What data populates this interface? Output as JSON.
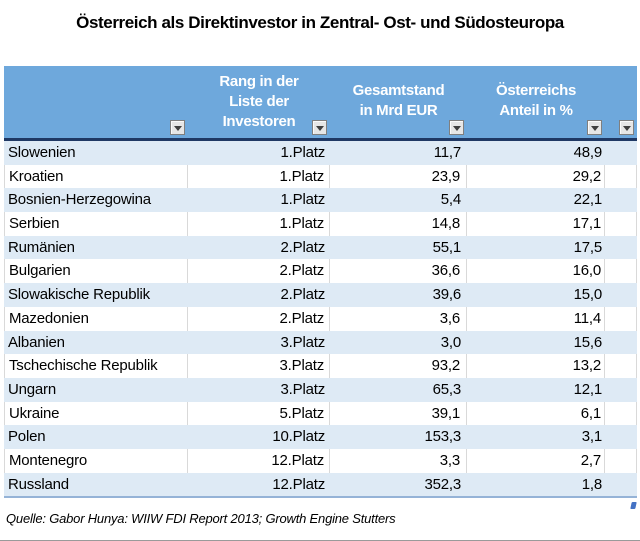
{
  "title": "Österreich als Direktinvestor in Zentral- Ost- und Südosteuropa",
  "source": "Quelle: Gabor Hunya: WIIW FDI Report 2013; Growth Engine Stutters",
  "colors": {
    "header_bg": "#6EA8DC",
    "header_text": "#FFFFFF",
    "header_bottom_border": "#1F3864",
    "band_blue": "#DEEAF5",
    "band_white": "#FFFFFF",
    "table_bottom_border": "#95B3D7",
    "filter_button_bg": "#E6E6E6"
  },
  "table": {
    "header": {
      "country_label": "",
      "rang_lines": [
        "Rang in der",
        "Liste der",
        "Investoren"
      ],
      "gesamtstand_lines": [
        "Gesamtstand",
        "in Mrd EUR"
      ],
      "anteil_lines": [
        "Österreichs",
        "Anteil in %"
      ],
      "extra_label": ""
    },
    "rows": [
      {
        "country": "Slowenien",
        "rang": "1.Platz",
        "gesamtstand": "11,7",
        "anteil": "48,9"
      },
      {
        "country": "Kroatien",
        "rang": "1.Platz",
        "gesamtstand": "23,9",
        "anteil": "29,2"
      },
      {
        "country": "Bosnien-Herzegowina",
        "rang": "1.Platz",
        "gesamtstand": "5,4",
        "anteil": "22,1"
      },
      {
        "country": "Serbien",
        "rang": "1.Platz",
        "gesamtstand": "14,8",
        "anteil": "17,1"
      },
      {
        "country": "Rumänien",
        "rang": "2.Platz",
        "gesamtstand": "55,1",
        "anteil": "17,5"
      },
      {
        "country": "Bulgarien",
        "rang": "2.Platz",
        "gesamtstand": "36,6",
        "anteil": "16,0"
      },
      {
        "country": "Slowakische Republik",
        "rang": "2.Platz",
        "gesamtstand": "39,6",
        "anteil": "15,0"
      },
      {
        "country": "Mazedonien",
        "rang": "2.Platz",
        "gesamtstand": "3,6",
        "anteil": "11,4"
      },
      {
        "country": "Albanien",
        "rang": "3.Platz",
        "gesamtstand": "3,0",
        "anteil": "15,6"
      },
      {
        "country": "Tschechische Republik",
        "rang": "3.Platz",
        "gesamtstand": "93,2",
        "anteil": "13,2"
      },
      {
        "country": "Ungarn",
        "rang": "3.Platz",
        "gesamtstand": "65,3",
        "anteil": "12,1"
      },
      {
        "country": "Ukraine",
        "rang": "5.Platz",
        "gesamtstand": "39,1",
        "anteil": "6,1"
      },
      {
        "country": "Polen",
        "rang": "10.Platz",
        "gesamtstand": "153,3",
        "anteil": "3,1"
      },
      {
        "country": "Montenegro",
        "rang": "12.Platz",
        "gesamtstand": "3,3",
        "anteil": "2,7"
      },
      {
        "country": "Russland",
        "rang": "12.Platz",
        "gesamtstand": "352,3",
        "anteil": "1,8"
      }
    ]
  },
  "chart_data": {
    "type": "table",
    "title": "Österreich als Direktinvestor in Zentral- Ost- und Südosteuropa",
    "columns": [
      "",
      "Rang in der Liste der Investoren",
      "Gesamtstand in Mrd EUR",
      "Österreichs Anteil in %"
    ],
    "rows": [
      [
        "Slowenien",
        "1.Platz",
        11.7,
        48.9
      ],
      [
        "Kroatien",
        "1.Platz",
        23.9,
        29.2
      ],
      [
        "Bosnien-Herzegowina",
        "1.Platz",
        5.4,
        22.1
      ],
      [
        "Serbien",
        "1.Platz",
        14.8,
        17.1
      ],
      [
        "Rumänien",
        "2.Platz",
        55.1,
        17.5
      ],
      [
        "Bulgarien",
        "2.Platz",
        36.6,
        16.0
      ],
      [
        "Slowakische Republik",
        "2.Platz",
        39.6,
        15.0
      ],
      [
        "Mazedonien",
        "2.Platz",
        3.6,
        11.4
      ],
      [
        "Albanien",
        "3.Platz",
        3.0,
        15.6
      ],
      [
        "Tschechische Republik",
        "3.Platz",
        93.2,
        13.2
      ],
      [
        "Ungarn",
        "3.Platz",
        65.3,
        12.1
      ],
      [
        "Ukraine",
        "5.Platz",
        39.1,
        6.1
      ],
      [
        "Polen",
        "10.Platz",
        153.3,
        3.1
      ],
      [
        "Montenegro",
        "12.Platz",
        3.3,
        2.7
      ],
      [
        "Russland",
        "12.Platz",
        352.3,
        1.8
      ]
    ],
    "source": "Quelle: Gabor Hunya: WIIW FDI Report 2013; Growth Engine Stutters"
  }
}
